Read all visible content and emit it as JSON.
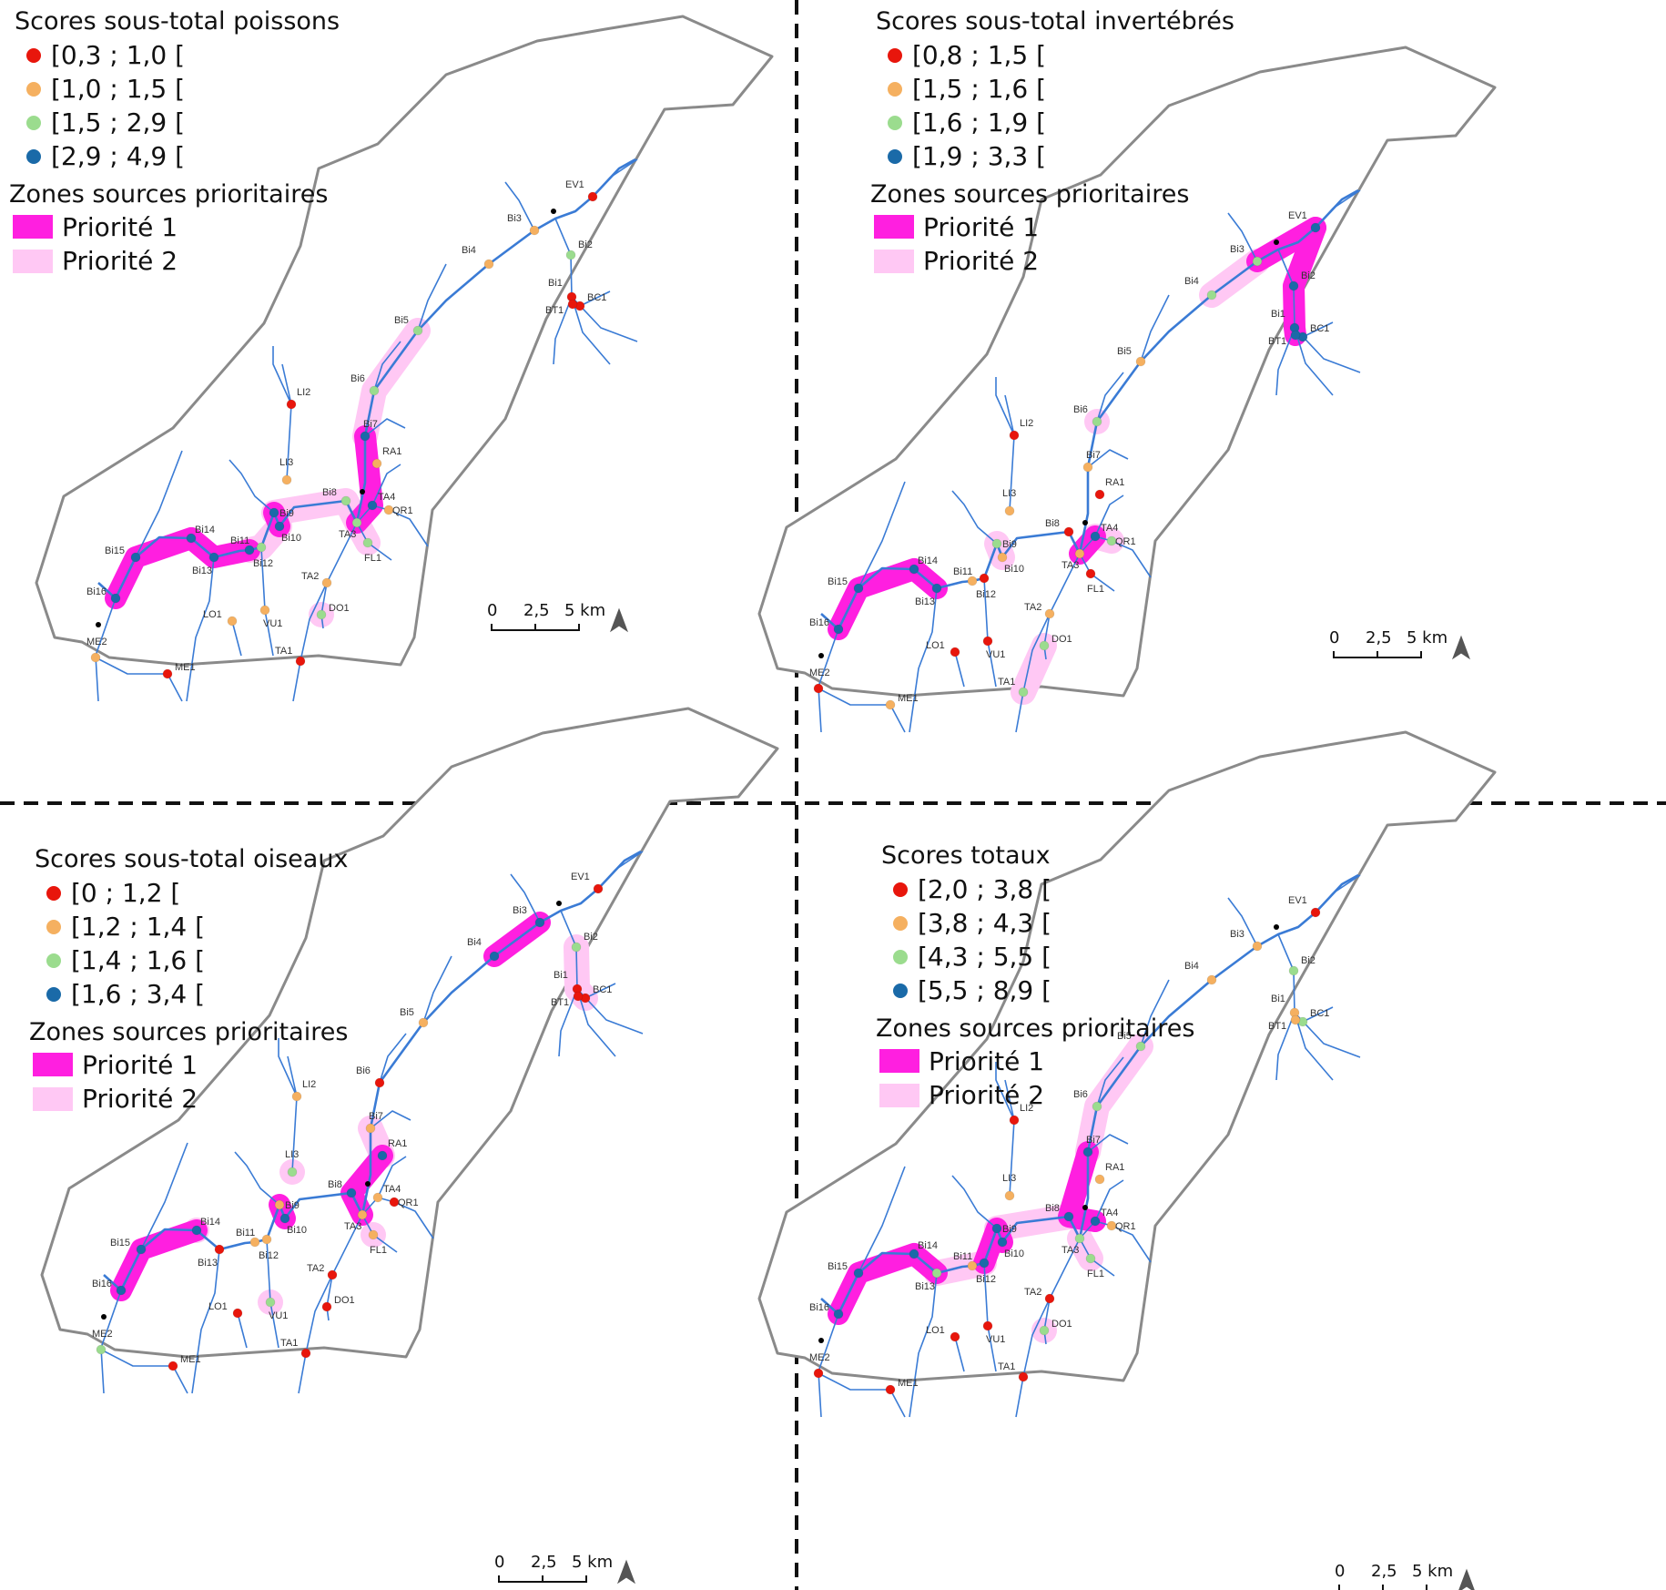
{
  "figure": {
    "colors": {
      "class1": "#e8160c",
      "class2": "#f5b060",
      "class3": "#9bdc8e",
      "class4": "#1a6aa8",
      "priority1": "#ff1fe0",
      "priority2": "#ffc8f4",
      "river": "#3a7bd5",
      "outline": "#8a8a8a"
    },
    "zones_title": "Zones sources prioritaires",
    "priority_labels": [
      "Priorité 1",
      "Priorité 2"
    ],
    "scale": {
      "ticks": [
        "0",
        "2,5",
        "5 km"
      ]
    },
    "panels": [
      {
        "name": "poissons",
        "title": "Scores sous-total poissons",
        "classes": [
          "[0,3 ; 1,0 [",
          "[1,0 ; 1,5 [",
          "[1,5 ; 2,9 [",
          "[2,9 ; 4,9 ["
        ],
        "station_classes": {
          "EV1": 1,
          "Bi2": 3,
          "BC1": 1,
          "BT1": 1,
          "Bi1": 1,
          "Bi3": 2,
          "Bi4": 2,
          "Bi5": 3,
          "Bi6": 3,
          "Bi7": 4,
          "RA1": 2,
          "LI2": 1,
          "LI3": 2,
          "Bi8": 3,
          "Bi9": 4,
          "TA4": 4,
          "QR1": 2,
          "TA3": 3,
          "FL1": 3,
          "Bi10": 4,
          "Bi11": 3,
          "Bi12": 4,
          "Bi13": 4,
          "Bi14": 4,
          "Bi15": 4,
          "Bi16": 4,
          "TA2": 2,
          "DO1": 3,
          "LO1": 2,
          "VU1": 2,
          "TA1": 1,
          "ME2": 2,
          "ME1": 1
        },
        "p1": [
          [
            "Bi16",
            "Bi15",
            "Bi14",
            "Bi13",
            "Bi12"
          ],
          [
            "Bi10",
            "Bi9"
          ],
          [
            "Bi7",
            "TA4",
            "TA3"
          ]
        ],
        "p2": [
          [
            "Bi5",
            "Bi6",
            "Bi7"
          ],
          [
            "Bi12",
            "Bi11",
            "Bi10"
          ],
          [
            "Bi9",
            "Bi8",
            "TA3"
          ],
          [
            "TA3",
            "FL1"
          ],
          [
            "DO1"
          ]
        ]
      },
      {
        "name": "invertebres",
        "title": "Scores sous-total invertébrés",
        "classes": [
          "[0,8 ; 1,5 [",
          "[1,5 ; 1,6 [",
          "[1,6 ; 1,9 [",
          "[1,9 ; 3,3 ["
        ],
        "station_classes": {
          "EV1": 4,
          "Bi2": 4,
          "BC1": 4,
          "BT1": 4,
          "Bi1": 4,
          "Bi3": 3,
          "Bi4": 3,
          "Bi5": 2,
          "Bi6": 3,
          "Bi7": 2,
          "RA1": 1,
          "LI2": 1,
          "LI3": 2,
          "Bi8": 1,
          "Bi9": 3,
          "TA4": 4,
          "QR1": 3,
          "TA3": 2,
          "FL1": 1,
          "Bi10": 2,
          "Bi11": 1,
          "Bi12": 2,
          "Bi13": 4,
          "Bi14": 4,
          "Bi15": 4,
          "Bi16": 4,
          "TA2": 2,
          "DO1": 3,
          "LO1": 1,
          "VU1": 1,
          "TA1": 3,
          "ME2": 1,
          "ME1": 2
        },
        "p1": [
          [
            "Bi3",
            "EV1"
          ],
          [
            "EV1",
            "Bi2",
            "Bi1",
            "BT1"
          ],
          [
            "Bi16",
            "Bi15",
            "Bi14",
            "Bi13"
          ],
          [
            "TA4",
            "TA3"
          ]
        ],
        "p2": [
          [
            "Bi4",
            "Bi3"
          ],
          [
            "Bi6"
          ],
          [
            "Bi9",
            "Bi10"
          ],
          [
            "TA4",
            "QR1"
          ],
          [
            "DO1",
            "TA1"
          ]
        ]
      },
      {
        "name": "oiseaux",
        "title": "Scores sous-total oiseaux",
        "classes": [
          "[0 ; 1,2 [",
          "[1,2 ; 1,4 [",
          "[1,4 ; 1,6 [",
          "[1,6 ; 3,4 ["
        ],
        "station_classes": {
          "EV1": 1,
          "Bi2": 3,
          "BC1": 1,
          "BT1": 1,
          "Bi1": 1,
          "Bi3": 4,
          "Bi4": 4,
          "Bi5": 2,
          "Bi6": 1,
          "Bi7": 2,
          "RA1": 4,
          "LI2": 2,
          "LI3": 3,
          "Bi8": 4,
          "Bi9": 2,
          "TA4": 2,
          "QR1": 1,
          "TA3": 2,
          "FL1": 2,
          "Bi10": 4,
          "Bi11": 2,
          "Bi12": 2,
          "Bi13": 1,
          "Bi14": 4,
          "Bi15": 4,
          "Bi16": 4,
          "TA2": 1,
          "DO1": 1,
          "LO1": 1,
          "VU1": 3,
          "TA1": 1,
          "ME2": 3,
          "ME1": 1
        },
        "p1": [
          [
            "Bi4",
            "Bi3"
          ],
          [
            "RA1",
            "Bi8",
            "TA3"
          ],
          [
            "Bi9",
            "Bi10"
          ],
          [
            "Bi16",
            "Bi15",
            "Bi14"
          ]
        ],
        "p2": [
          [
            "Bi2",
            "Bi1",
            "BC1"
          ],
          [
            "Bi7",
            "RA1"
          ],
          [
            "FL1"
          ],
          [
            "VU1"
          ],
          [
            "LI3"
          ],
          [
            "Bi14"
          ]
        ]
      },
      {
        "name": "totaux",
        "title": "Scores totaux",
        "classes": [
          "[2,0 ; 3,8 [",
          "[3,8 ; 4,3 [",
          "[4,3 ; 5,5 [",
          "[5,5 ; 8,9 ["
        ],
        "station_classes": {
          "EV1": 1,
          "Bi2": 3,
          "BC1": 3,
          "BT1": 2,
          "Bi1": 2,
          "Bi3": 2,
          "Bi4": 2,
          "Bi5": 3,
          "Bi6": 3,
          "Bi7": 4,
          "RA1": 2,
          "LI2": 1,
          "LI3": 2,
          "Bi8": 4,
          "Bi9": 4,
          "TA4": 4,
          "QR1": 2,
          "TA3": 3,
          "FL1": 3,
          "Bi10": 4,
          "Bi11": 4,
          "Bi12": 2,
          "Bi13": 3,
          "Bi14": 4,
          "Bi15": 4,
          "Bi16": 4,
          "TA2": 1,
          "DO1": 3,
          "LO1": 1,
          "VU1": 1,
          "TA1": 1,
          "ME2": 1,
          "ME1": 1
        },
        "p1": [
          [
            "Bi7",
            "Bi8",
            "TA4"
          ],
          [
            "Bi10",
            "Bi9",
            "Bi11"
          ],
          [
            "Bi16",
            "Bi15",
            "Bi14",
            "Bi13"
          ]
        ],
        "p2": [
          [
            "Bi5",
            "Bi6",
            "Bi7"
          ],
          [
            "Bi13",
            "Bi12",
            "Bi11"
          ],
          [
            "TA3",
            "FL1"
          ],
          [
            "DO1"
          ],
          [
            "Bi8",
            "Bi9"
          ]
        ]
      }
    ]
  }
}
